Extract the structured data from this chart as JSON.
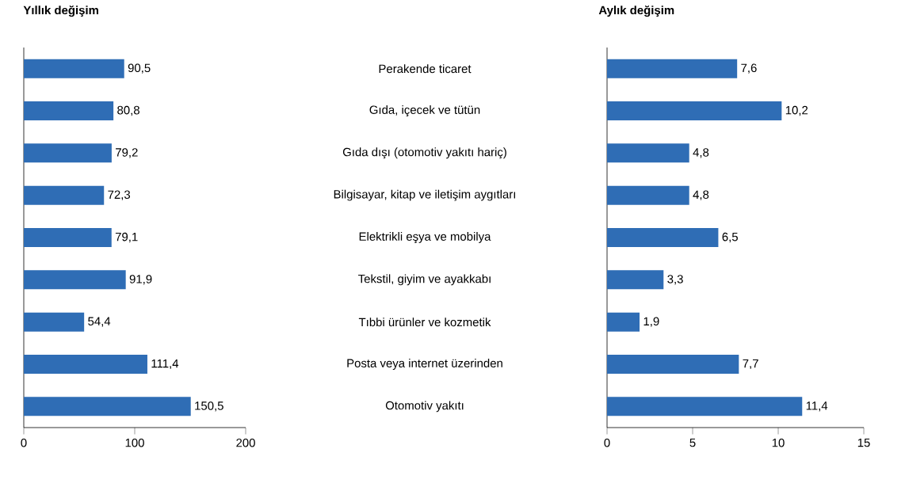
{
  "chart_data": [
    {
      "type": "bar",
      "orientation": "horizontal",
      "title": "Yıllık değişim",
      "categories": [
        null,
        null,
        null,
        null,
        null,
        null,
        null,
        null,
        null
      ],
      "values": [
        90.5,
        80.8,
        79.2,
        72.3,
        79.1,
        91.9,
        54.4,
        111.4,
        150.5
      ],
      "value_labels": [
        "90,5",
        "80,8",
        "79,2",
        "72,3",
        "79,1",
        "91,9",
        "54,4",
        "111,4",
        "150,5"
      ],
      "color": "#2f6db5",
      "xlim": [
        0,
        200
      ],
      "xticks": [
        0,
        100,
        200
      ]
    },
    {
      "type": "other",
      "annotations": [
        "Perakende ticaret",
        "Gıda, içecek ve tütün",
        "Gıda dışı (otomotiv yakıtı hariç)",
        "Bilgisayar, kitap ve iletişim aygıtları",
        "Elektrikli eşya ve mobilya",
        "Tekstil, giyim ve ayakkabı",
        "Tıbbi ürünler ve kozmetik",
        "Posta veya internet üzerinden",
        "Otomotiv yakıtı"
      ]
    },
    {
      "type": "bar",
      "orientation": "horizontal",
      "title": "Aylık değişim",
      "categories": [
        null,
        null,
        null,
        null,
        null,
        null,
        null,
        null,
        null
      ],
      "values": [
        7.6,
        10.2,
        4.8,
        4.8,
        6.5,
        3.3,
        1.9,
        7.7,
        11.4
      ],
      "value_labels": [
        "7,6",
        "10,2",
        "4,8",
        "4,8",
        "6,5",
        "3,3",
        "1,9",
        "7,7",
        "11,4"
      ],
      "color": "#2f6db5",
      "xlim": [
        0,
        15
      ],
      "xticks": [
        0,
        5,
        10,
        15
      ]
    }
  ]
}
